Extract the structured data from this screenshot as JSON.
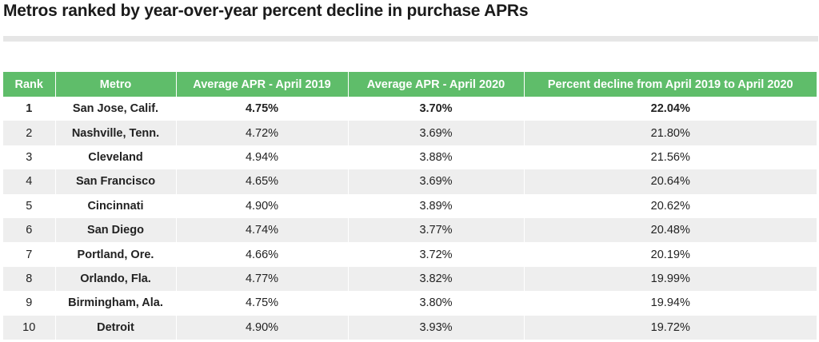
{
  "title": "Metros ranked by year-over-year percent decline in purchase APRs",
  "colors": {
    "header_bg": "#5fbd6a",
    "header_text": "#ffffff",
    "stripe": "#eeeeee",
    "divider": "#e6e6e6"
  },
  "table": {
    "headers": {
      "rank": "Rank",
      "metro": "Metro",
      "apr_2019": "Average APR - April 2019",
      "apr_2020": "Average APR - April 2020",
      "decline": "Percent decline from April 2019 to April 2020"
    },
    "rows": [
      {
        "rank": "1",
        "metro": "San Jose, Calif.",
        "apr_2019": "4.75%",
        "apr_2020": "3.70%",
        "decline": "22.04%"
      },
      {
        "rank": "2",
        "metro": "Nashville, Tenn.",
        "apr_2019": "4.72%",
        "apr_2020": "3.69%",
        "decline": "21.80%"
      },
      {
        "rank": "3",
        "metro": "Cleveland",
        "apr_2019": "4.94%",
        "apr_2020": "3.88%",
        "decline": "21.56%"
      },
      {
        "rank": "4",
        "metro": "San Francisco",
        "apr_2019": "4.65%",
        "apr_2020": "3.69%",
        "decline": "20.64%"
      },
      {
        "rank": "5",
        "metro": "Cincinnati",
        "apr_2019": "4.90%",
        "apr_2020": "3.89%",
        "decline": "20.62%"
      },
      {
        "rank": "6",
        "metro": "San Diego",
        "apr_2019": "4.74%",
        "apr_2020": "3.77%",
        "decline": "20.48%"
      },
      {
        "rank": "7",
        "metro": "Portland, Ore.",
        "apr_2019": "4.66%",
        "apr_2020": "3.72%",
        "decline": "20.19%"
      },
      {
        "rank": "8",
        "metro": "Orlando, Fla.",
        "apr_2019": "4.77%",
        "apr_2020": "3.82%",
        "decline": "19.99%"
      },
      {
        "rank": "9",
        "metro": "Birmingham, Ala.",
        "apr_2019": "4.75%",
        "apr_2020": "3.80%",
        "decline": "19.94%"
      },
      {
        "rank": "10",
        "metro": "Detroit",
        "apr_2019": "4.90%",
        "apr_2020": "3.93%",
        "decline": "19.72%"
      }
    ]
  }
}
